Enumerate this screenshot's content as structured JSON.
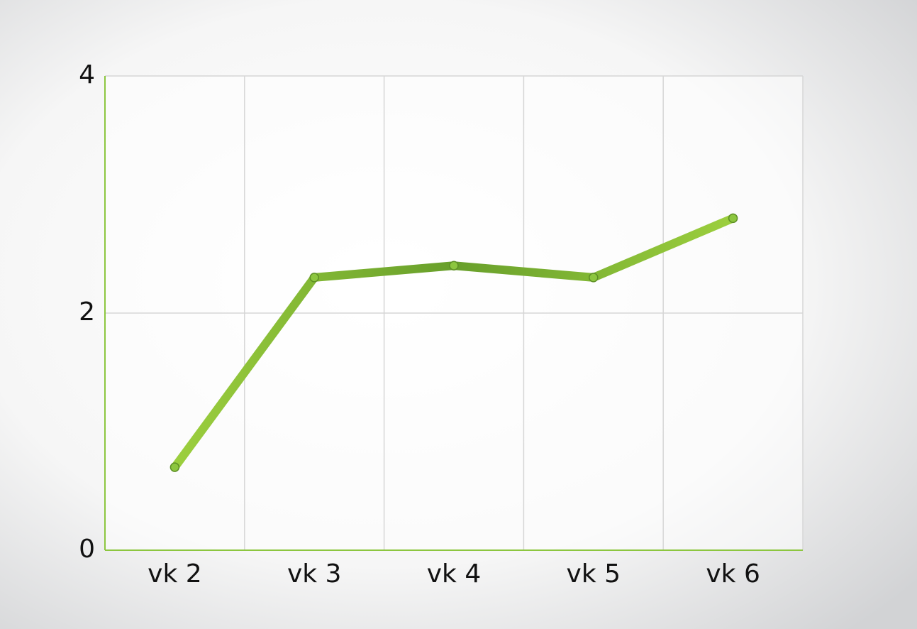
{
  "chart_data": {
    "type": "line",
    "categories": [
      "vk 2",
      "vk 3",
      "vk 4",
      "vk 5",
      "vk 6"
    ],
    "series": [
      {
        "color": "#8cc63f",
        "values": [
          0.7,
          2.3,
          2.4,
          2.3,
          2.8
        ]
      }
    ],
    "ylim": [
      0,
      4
    ],
    "yticks": [
      0,
      2,
      4
    ],
    "grid": true
  }
}
